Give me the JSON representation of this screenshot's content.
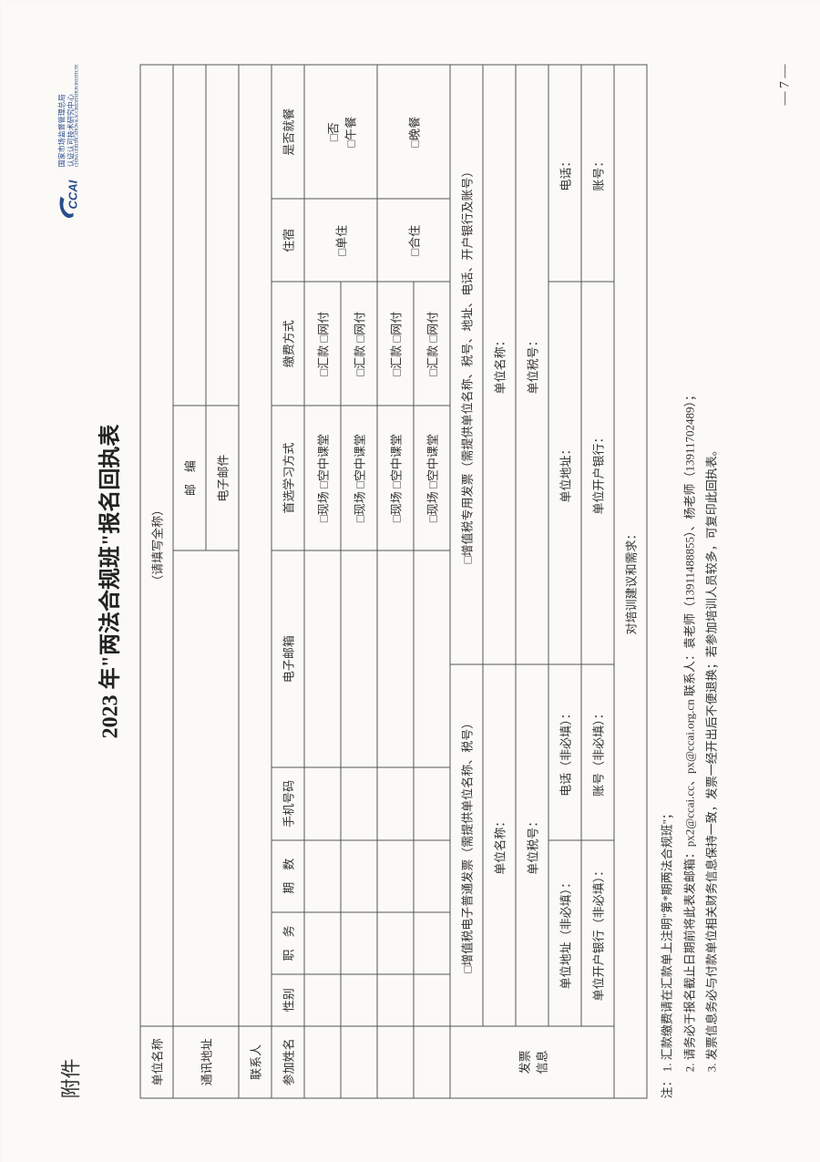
{
  "header": {
    "attachment": "附件",
    "logo_text_1": "国家市场监督管理总局",
    "logo_text_2": "认证认可技术研究中心",
    "logo_text_sub": "CHINA CERTIFICATION & ACCREDITATION INSTITUTE",
    "logo_brand": "CCAI",
    "logo_color": "#2a4d8f"
  },
  "title": "2023 年\"两法合规班\"报名回执表",
  "labels": {
    "unit_name": "单位名称",
    "full_name_hint": "（请填写全称）",
    "address": "通讯地址",
    "postcode": "邮　编",
    "contact": "联系人",
    "email": "电子邮件",
    "participant": "参加姓名",
    "gender": "性别",
    "position": "职　务",
    "session": "期　数",
    "mobile": "手机号码",
    "email_col": "电子邮箱",
    "study_mode": "首选学习方式",
    "pay_mode": "缴费方式",
    "lodging": "住宿",
    "meals": "是否就餐",
    "study_opt_onsite": "□现场",
    "study_opt_online": "□空中课堂",
    "pay_opt_transfer": "□汇款",
    "pay_opt_online": "□网付",
    "lodging_single": "□单住",
    "lodging_shared": "□合住",
    "meal_no": "□否",
    "meal_lunch": "□午餐",
    "meal_dinner": "□晚餐",
    "invoice_section": "发票信息",
    "invoice_normal": "□增值税电子普通发票（需提供单位名称、税号）",
    "invoice_special": "□增值税专用发票（需提供单位名称、税号、地址、电话、开户银行及账号）",
    "inv_unit": "单位名称：",
    "inv_tax": "单位税号：",
    "inv_addr_opt": "单位地址（非必填）：",
    "inv_addr": "单位地址：",
    "inv_phone_opt": "电话（非必填）：",
    "inv_phone": "电话：",
    "inv_bank_opt": "单位开户银行（非必填）：",
    "inv_bank": "单位开户银行：",
    "inv_acct_opt": "账号（非必填）：",
    "inv_acct": "账号：",
    "suggestions": "对培训建议和需求："
  },
  "notes": {
    "prefix": "注：",
    "n1": "1. 汇款缴费请在汇款单上注明\"第*期两法合规班\"；",
    "n2": "2. 请务必于报名截止日期前将此表发邮箱：px2@ccai.cc、px@ccai.org.cn  联系人：袁老师（13911488855）、杨老师（13911702489）；",
    "n3": "3. 发票信息务必与付款单位相关财务信息保持一致，发票一经开出后不便退换；若参加培训人员较多，可复印此回执表。"
  },
  "page_number": "— 7 —",
  "colors": {
    "border": "#555555",
    "text": "#333333",
    "background": "#fbfaf7",
    "outer_bg": "#f5f4f0"
  }
}
